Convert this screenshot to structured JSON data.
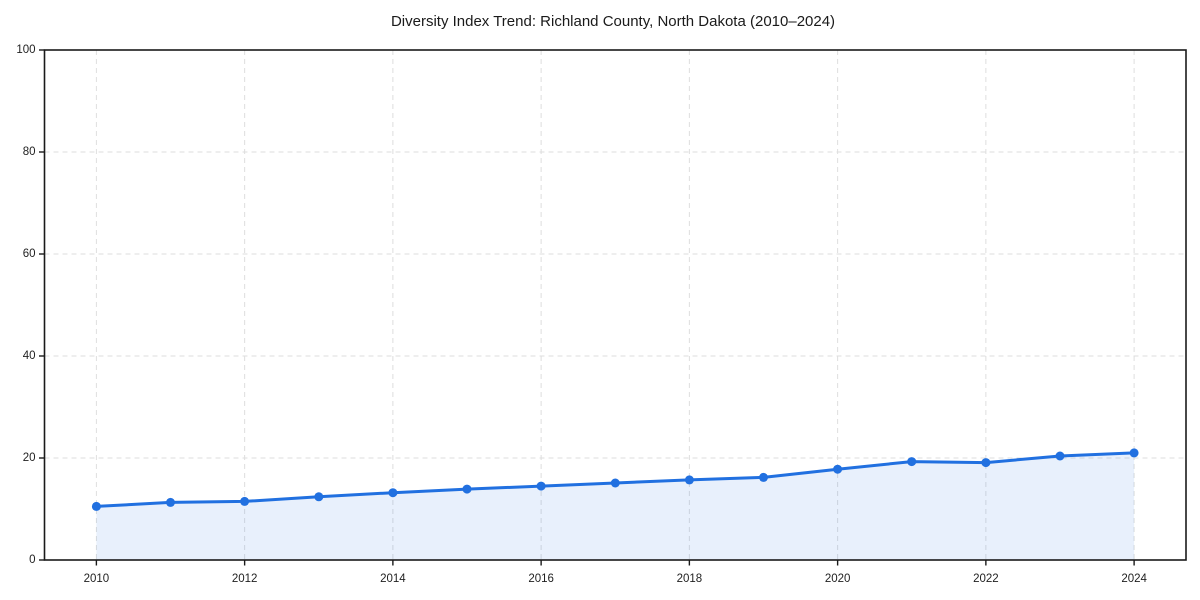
{
  "title": "Diversity Index Trend: Richland County, North Dakota (2010–2024)",
  "chart_data": {
    "type": "area",
    "title": "Diversity Index Trend: Richland County, North Dakota (2010–2024)",
    "x": [
      2010,
      2011,
      2012,
      2013,
      2014,
      2015,
      2016,
      2017,
      2018,
      2019,
      2020,
      2021,
      2022,
      2023,
      2024
    ],
    "values": [
      10.5,
      11.3,
      11.5,
      12.4,
      13.2,
      13.9,
      14.5,
      15.1,
      15.7,
      16.2,
      17.8,
      19.3,
      19.1,
      20.4,
      21.0
    ],
    "xlabel": "",
    "ylabel": "",
    "xlim": [
      2009.3,
      2024.7
    ],
    "ylim": [
      0,
      100
    ],
    "x_ticks": [
      2010,
      2012,
      2014,
      2016,
      2018,
      2020,
      2022,
      2024
    ],
    "y_ticks": [
      0,
      20,
      40,
      60,
      80,
      100
    ],
    "grid": "dashed",
    "legend": "none",
    "marker": "circle",
    "colors": {
      "line": "#2170e0",
      "marker": "#2170e0",
      "area_fill": "#2170e0",
      "area_opacity": "0.1",
      "grid": "#dedede",
      "axis": "#1a1a1a",
      "tick_text": "#1f1f1f",
      "background": "#ffffff"
    }
  }
}
